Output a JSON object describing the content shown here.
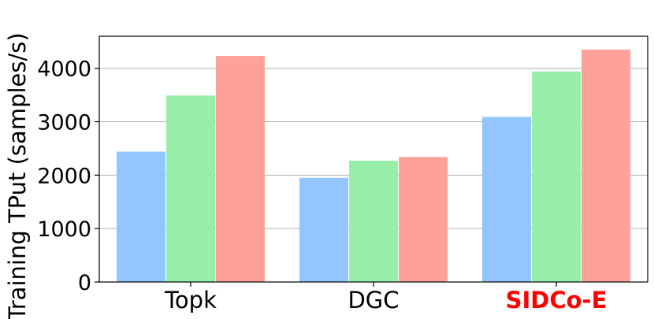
{
  "chart_data": {
    "type": "bar",
    "title": "",
    "xlabel": "",
    "ylabel": "Training TPut (samples/s)",
    "categories": [
      "Topk",
      "DGC",
      "SIDCo-E"
    ],
    "highlight_category": "SIDCo-E",
    "highlight_color": "#ff0000",
    "series": [
      {
        "color": "#93c6ff",
        "values": [
          2440,
          1950,
          3090
        ]
      },
      {
        "color": "#96eea9",
        "values": [
          3490,
          2270,
          3940
        ]
      },
      {
        "color": "#ffa19b",
        "values": [
          4230,
          2340,
          4350
        ]
      }
    ],
    "ylim": [
      0,
      4600
    ],
    "yticks": [
      0,
      1000,
      2000,
      3000,
      4000
    ],
    "grid": "horizontal",
    "legend": "none"
  }
}
